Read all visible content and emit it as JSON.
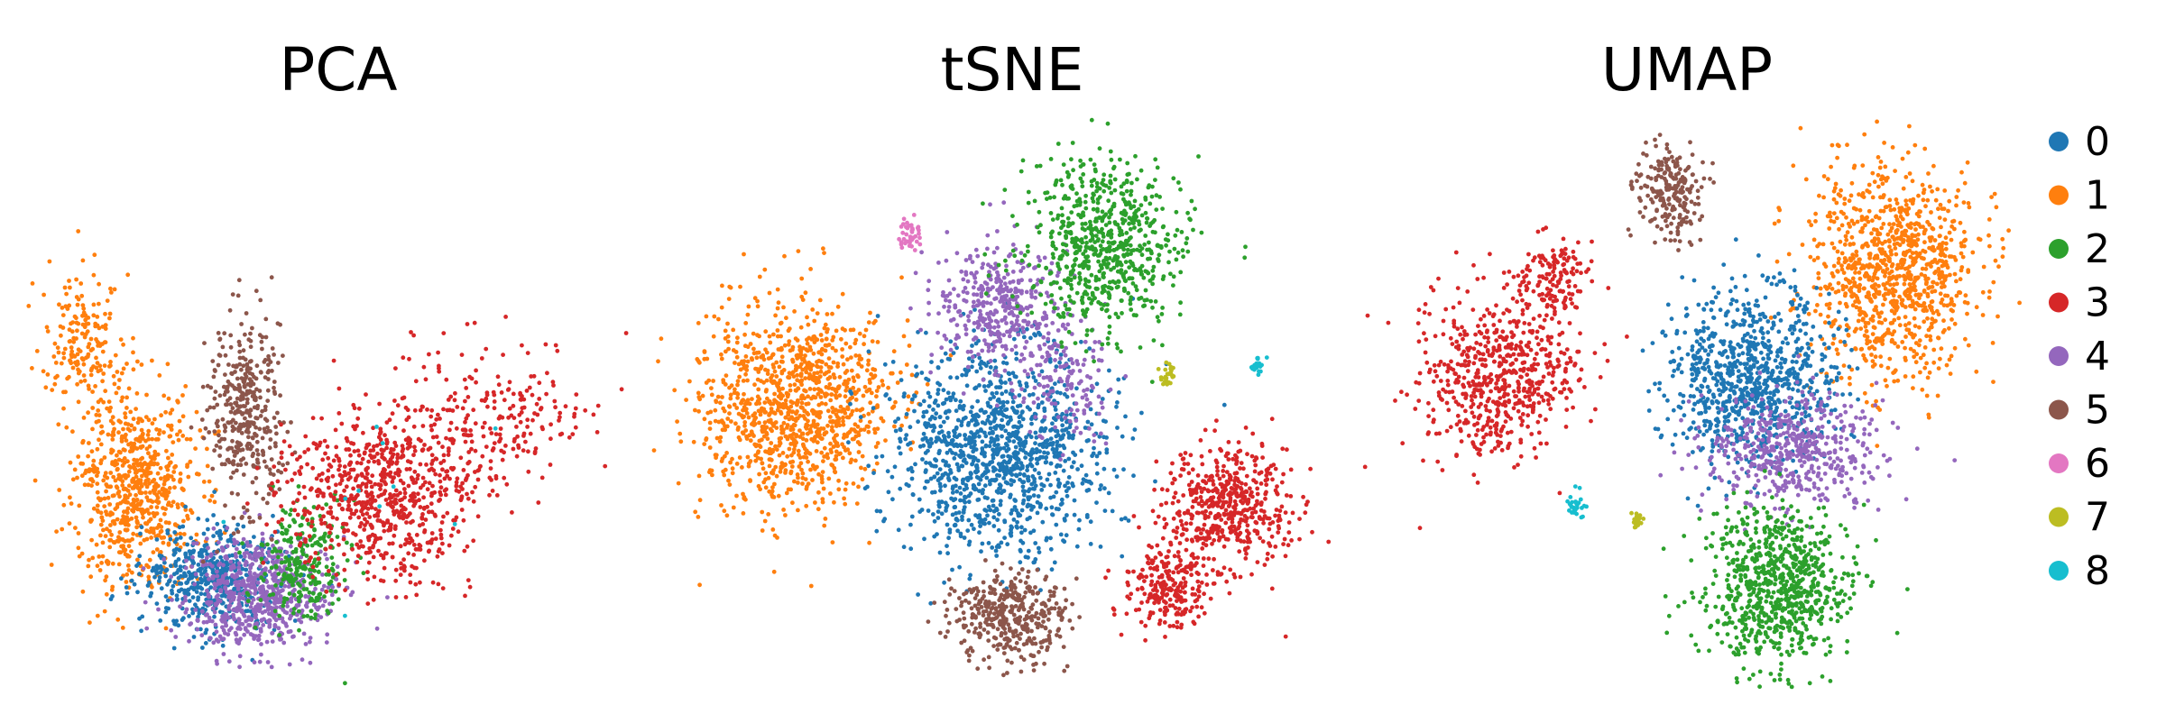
{
  "chart_data": [
    {
      "type": "scatter",
      "title": "PCA",
      "xlabel": "",
      "ylabel": "",
      "axes_visible": false,
      "grid": false
    },
    {
      "type": "scatter",
      "title": "tSNE",
      "xlabel": "",
      "ylabel": "",
      "axes_visible": false,
      "grid": false
    },
    {
      "type": "scatter",
      "title": "UMAP",
      "xlabel": "",
      "ylabel": "",
      "axes_visible": false,
      "grid": false
    }
  ],
  "legend": {
    "placement": "right",
    "items": [
      {
        "label": "0",
        "color": "#1f77b4"
      },
      {
        "label": "1",
        "color": "#ff7f0e"
      },
      {
        "label": "2",
        "color": "#2ca02c"
      },
      {
        "label": "3",
        "color": "#d62728"
      },
      {
        "label": "4",
        "color": "#9467bd"
      },
      {
        "label": "5",
        "color": "#8c564b"
      },
      {
        "label": "6",
        "color": "#e377c2"
      },
      {
        "label": "7",
        "color": "#bcbd22"
      },
      {
        "label": "8",
        "color": "#17becf"
      }
    ]
  }
}
